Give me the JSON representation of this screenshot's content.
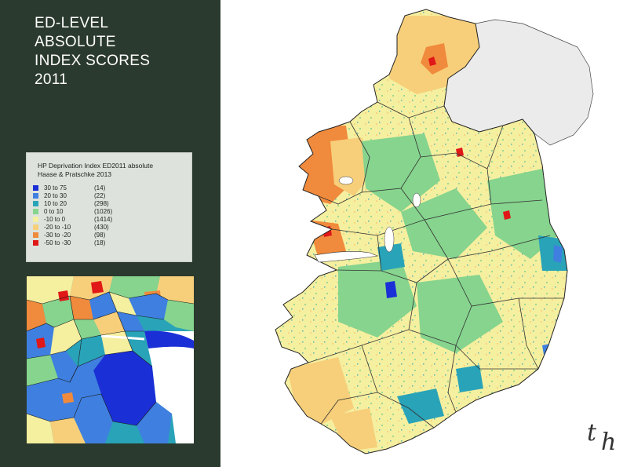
{
  "title": {
    "lines": [
      "ED-LEVEL",
      "ABSOLUTE",
      "INDEX SCORES",
      "2011"
    ]
  },
  "legend": {
    "heading_line1": "HP Deprivation Index ED2011 absolute",
    "heading_line2": "Haase & Pratschke 2013",
    "classes": [
      {
        "range": "30 to  75",
        "count": "(14)",
        "color": "#1b2fd6"
      },
      {
        "range": "20 to  30",
        "count": "(22)",
        "color": "#3f7fe0"
      },
      {
        "range": "10 to  20",
        "count": "(298)",
        "color": "#29a3b8"
      },
      {
        "range": "0 to  10",
        "count": "(1026)",
        "color": "#86d48e"
      },
      {
        "range": "-10 to   0",
        "count": "(1414)",
        "color": "#f5efa0"
      },
      {
        "range": "-20 to -10",
        "count": "(430)",
        "color": "#f7cf7a"
      },
      {
        "range": "-30 to -20",
        "count": "(98)",
        "color": "#f08a3c"
      },
      {
        "range": "-50 to -30",
        "count": "(18)",
        "color": "#e01818"
      }
    ]
  },
  "colors": {
    "sidebar": "#2b3a2e",
    "northern_ireland": "#ebebeb",
    "water": "#ffffff",
    "boundary": "#333333"
  },
  "logo": {
    "t": "t",
    "h": "h"
  }
}
